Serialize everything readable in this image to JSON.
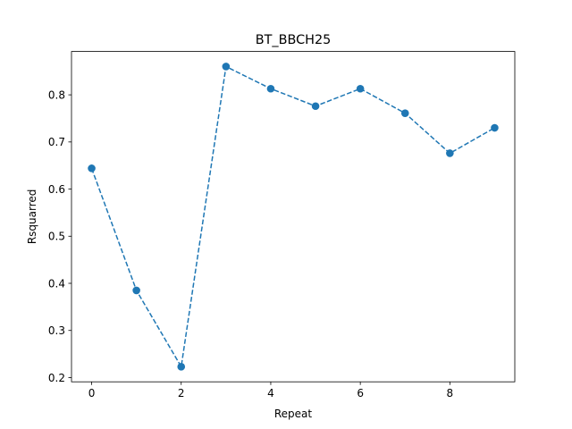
{
  "chart_data": {
    "type": "line",
    "title": "BT_BBCH25",
    "xlabel": "Repeat",
    "ylabel": "Rsquarred",
    "x": [
      0,
      1,
      2,
      3,
      4,
      5,
      6,
      7,
      8,
      9
    ],
    "series": [
      {
        "values": [
          0.644,
          0.385,
          0.223,
          0.86,
          0.813,
          0.776,
          0.813,
          0.761,
          0.676,
          0.73
        ],
        "color": "#1f77b4",
        "line_style": "dashed",
        "marker": "circle"
      }
    ],
    "xlim": [
      -0.45,
      9.45
    ],
    "ylim": [
      0.191,
      0.892
    ],
    "xticks": [
      "0",
      "2",
      "4",
      "6",
      "8"
    ],
    "yticks": [
      "0.2",
      "0.3",
      "0.4",
      "0.5",
      "0.6",
      "0.7",
      "0.8"
    ],
    "grid": false,
    "legend": "none"
  }
}
